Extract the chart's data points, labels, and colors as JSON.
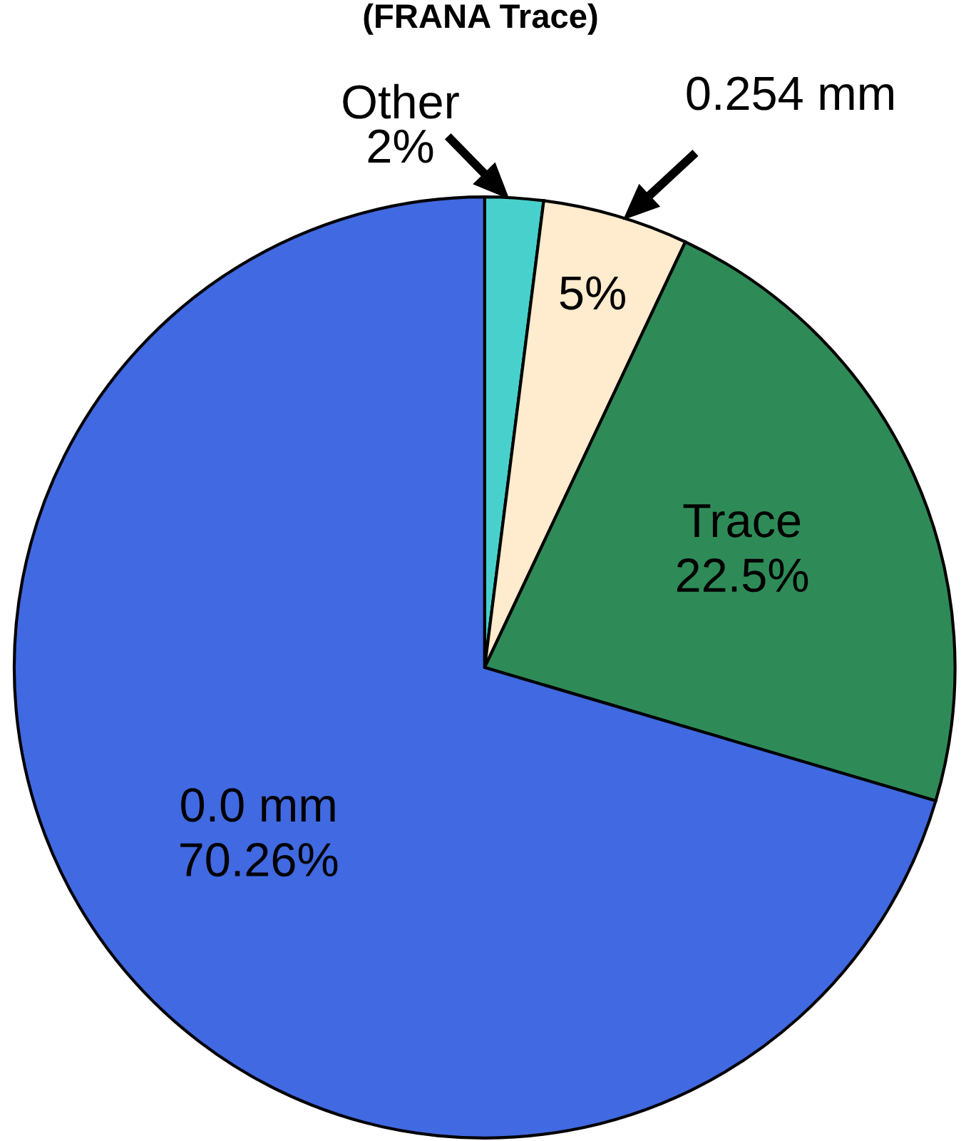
{
  "chart_data": {
    "type": "pie",
    "title": "(FRANA Trace)",
    "categories": [
      "Other",
      "0.254 mm",
      "Trace",
      "0.0 mm"
    ],
    "values": [
      2,
      5,
      22.5,
      70.26
    ],
    "value_labels": [
      "2%",
      "5%",
      "22.5%",
      "70.26%"
    ],
    "colors": [
      "#48d1cc",
      "#ffebcd",
      "#2e8b57",
      "#4169e1"
    ]
  }
}
